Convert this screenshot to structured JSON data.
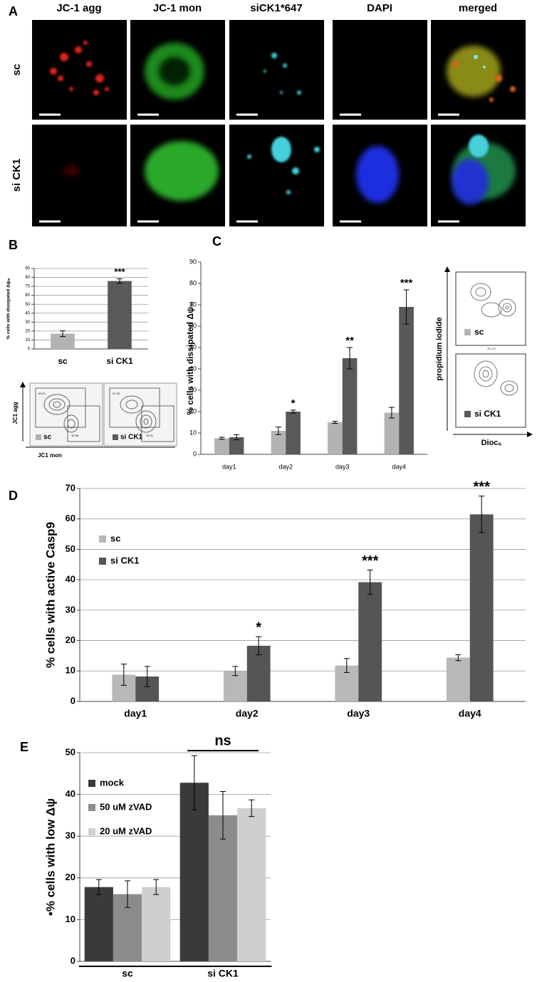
{
  "figure_a": {
    "panel_label": "A",
    "columns": [
      "JC-1 agg",
      "JC-1 mon",
      "siCK1*647",
      "DAPI",
      "merged"
    ],
    "rows": [
      "sc",
      "si CK1"
    ],
    "scale_bar": "10 µm"
  },
  "flow_b": {
    "samples": [
      "sc",
      "si CK1"
    ],
    "y_label": "JC1 agg",
    "x_label": "JC1 mon",
    "gates": [
      [
        "63.21",
        "10.38"
      ],
      [
        "21.33",
        "76.01"
      ]
    ]
  },
  "flow_c": {
    "samples": [
      "sc",
      "si CK1"
    ],
    "y_label": "propidium iodide",
    "x_label": "Dioc₆",
    "axis_caption": "FL1-H"
  },
  "chart_data": [
    {
      "type": "bar",
      "panel_label": "B",
      "y_label": "% cells with dissipated Δψₘ",
      "categories": [
        "sc",
        "si CK1"
      ],
      "series": [
        {
          "colors": [
            "#b3b3b3",
            "#595959"
          ],
          "values": [
            17,
            76
          ],
          "errors": [
            3.2,
            2.5
          ]
        }
      ],
      "annotations": [
        null,
        "***"
      ],
      "ylim": [
        0,
        90
      ],
      "yticks": [
        0,
        10,
        20,
        30,
        40,
        50,
        60,
        70,
        80,
        90
      ],
      "grid": true
    },
    {
      "type": "bar",
      "panel_label": "C",
      "y_label": "% cells with dissipated Δψₘ",
      "categories": [
        "day1",
        "day2",
        "day3",
        "day4"
      ],
      "series": [
        {
          "color": "#b3b3b3",
          "values": [
            7.5,
            11,
            15,
            19.5
          ],
          "errors": [
            0.5,
            1.8,
            0.5,
            2.5
          ]
        },
        {
          "color": "#595959",
          "values": [
            8,
            20,
            45,
            69
          ],
          "errors": [
            1.2,
            0.7,
            5,
            8
          ]
        }
      ],
      "annotations": [
        null,
        "*",
        "**",
        "***"
      ],
      "ylim": [
        0,
        90
      ],
      "yticks": [
        0,
        10,
        20,
        30,
        40,
        50,
        60,
        70,
        80,
        90
      ],
      "grid": false
    },
    {
      "type": "bar",
      "panel_label": "D",
      "y_label": "% cells with active Casp9",
      "categories": [
        "day1",
        "day2",
        "day3",
        "day4"
      ],
      "series": [
        {
          "name": "sc",
          "color": "#b8b8b8",
          "values": [
            8.8,
            10,
            11.8,
            14.4
          ],
          "errors": [
            3.5,
            1.5,
            2.3,
            1
          ]
        },
        {
          "name": "si CK1",
          "color": "#555555",
          "values": [
            8.2,
            18.3,
            39.2,
            61.5
          ],
          "errors": [
            3.3,
            3,
            4,
            6
          ]
        }
      ],
      "annotations": [
        null,
        "*",
        "***",
        "***"
      ],
      "ylim": [
        0,
        70
      ],
      "yticks": [
        0,
        10,
        20,
        30,
        40,
        50,
        60,
        70
      ],
      "grid": true,
      "legend": "upper-left"
    },
    {
      "type": "bar",
      "panel_label": "E",
      "y_label": "•% cells with low Δψ",
      "categories": [
        "sc",
        "si CK1"
      ],
      "series": [
        {
          "name": "mock",
          "color": "#3a3a3a",
          "values": [
            17.8,
            42.8
          ],
          "errors": [
            1.8,
            6.5
          ]
        },
        {
          "name": "50 uM zVAD",
          "color": "#8c8c8c",
          "values": [
            16.1,
            35
          ],
          "errors": [
            3.2,
            5.7
          ]
        },
        {
          "name": "20 uM zVAD",
          "color": "#cfcfcf",
          "values": [
            17.8,
            36.7
          ],
          "errors": [
            1.8,
            2
          ]
        }
      ],
      "annotations": [
        null,
        "ns"
      ],
      "ylim": [
        0,
        50
      ],
      "yticks": [
        0,
        10,
        20,
        30,
        40,
        50
      ],
      "grid": true,
      "legend": "upper-left"
    }
  ]
}
